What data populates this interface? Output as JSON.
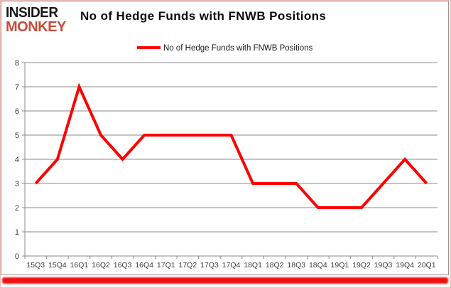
{
  "brand": {
    "line1": "INSIDER",
    "line2": "MONKEY",
    "line1_color": "#181818",
    "line2_color": "#c74b3a"
  },
  "header": {
    "title": "No of Hedge Funds with FNWB Positions"
  },
  "legend": {
    "label": "No of Hedge Funds with FNWB Positions",
    "marker_color": "#ff0000"
  },
  "chart_data": {
    "type": "line",
    "title": "No of Hedge Funds with FNWB Positions",
    "categories": [
      "15Q3",
      "15Q4",
      "16Q1",
      "16Q2",
      "16Q3",
      "16Q4",
      "17Q1",
      "17Q2",
      "17Q3",
      "17Q4",
      "18Q1",
      "18Q2",
      "18Q3",
      "18Q4",
      "19Q1",
      "19Q2",
      "19Q3",
      "19Q4",
      "20Q1"
    ],
    "series": [
      {
        "name": "No of Hedge Funds with FNWB Positions",
        "color": "#ff0000",
        "line_width": 4,
        "values": [
          3,
          4,
          7,
          5,
          4,
          5,
          5,
          5,
          5,
          5,
          3,
          3,
          3,
          2,
          2,
          2,
          3,
          4,
          3
        ]
      }
    ],
    "xlabel": "",
    "ylabel": "",
    "ylim": [
      0,
      8
    ],
    "yticks": [
      0,
      1,
      2,
      3,
      4,
      5,
      6,
      7,
      8
    ],
    "grid": true,
    "legend_position": "top-center",
    "colors": {
      "gridline": "#898989",
      "axis": "#898989",
      "tick_label": "#3c3c3c",
      "legend_text": "#1a1a1a"
    }
  }
}
